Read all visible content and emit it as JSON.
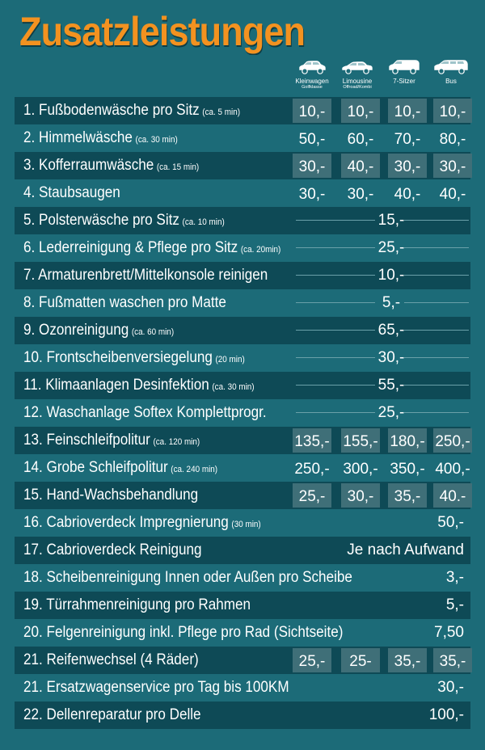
{
  "title": "Zusatzleistungen",
  "vehicles": [
    {
      "label": "Kleinwagen",
      "sub": "Golfklasse",
      "icon": "small-car-icon"
    },
    {
      "label": "Limousine",
      "sub": "Offroad/Kombi",
      "icon": "sedan-icon"
    },
    {
      "label": "7-Sitzer",
      "sub": "",
      "icon": "van-icon"
    },
    {
      "label": "Bus",
      "sub": "",
      "icon": "bus-icon"
    }
  ],
  "rows": [
    {
      "label": "1. Fußbodenwäsche pro Sitz",
      "note": "(ca. 5 min)",
      "type": "four",
      "boxed": true,
      "prices": [
        "10,-",
        "10,-",
        "10,-",
        "10,-"
      ]
    },
    {
      "label": "2. Himmelwäsche",
      "note": "(ca. 30 min)",
      "type": "four",
      "boxed": false,
      "prices": [
        "50,-",
        "60,-",
        "70,-",
        "80,-"
      ]
    },
    {
      "label": "3. Kofferraumwäsche",
      "note": "(ca. 15 min)",
      "type": "four",
      "boxed": true,
      "prices": [
        "30,-",
        "40,-",
        "30,-",
        "30,-"
      ]
    },
    {
      "label": "4. Staubsaugen",
      "note": "",
      "type": "four",
      "boxed": false,
      "prices": [
        "30,-",
        "30,-",
        "40,-",
        "40,-"
      ]
    },
    {
      "label": "5. Polsterwäsche pro Sitz",
      "note": "(ca. 10 min)",
      "type": "span",
      "price": "15,-"
    },
    {
      "label": "6. Lederreinigung & Pflege pro Sitz",
      "note": "(ca. 20min)",
      "type": "span",
      "price": "25,-"
    },
    {
      "label": "7. Armaturenbrett/Mittelkonsole reinigen",
      "note": "",
      "type": "span",
      "price": "10,-"
    },
    {
      "label": "8. Fußmatten waschen pro Matte",
      "note": "",
      "type": "span",
      "price": "5,-"
    },
    {
      "label": "9. Ozonreinigung",
      "note": "(ca. 60 min)",
      "type": "span",
      "price": "65,-"
    },
    {
      "label": "10. Frontscheibenversiegelung",
      "note": "(20 min)",
      "type": "span",
      "price": "30,-"
    },
    {
      "label": "11. Klimaanlagen Desinfektion",
      "note": "(ca. 30 min)",
      "type": "span",
      "price": "55,-"
    },
    {
      "label": "12. Waschanlage Softex Komplettprogr.",
      "note": "",
      "type": "span",
      "price": "25,-"
    },
    {
      "label": "13. Feinschleifpolitur",
      "note": "(ca. 120 min)",
      "type": "four",
      "boxed": true,
      "prices": [
        "135,-",
        "155,-",
        "180,-",
        "250,-"
      ]
    },
    {
      "label": "14. Grobe Schleifpolitur",
      "note": "(ca. 240 min)",
      "type": "four",
      "boxed": false,
      "prices": [
        "250,-",
        "300,-",
        "350,-",
        "400,-"
      ]
    },
    {
      "label": "15. Hand-Wachsbehandlung",
      "note": "",
      "type": "four",
      "boxed": true,
      "prices": [
        "25,-",
        "30,-",
        "35,-",
        "40.-"
      ]
    },
    {
      "label": "16. Cabrioverdeck Impregnierung",
      "note": "(30 min)",
      "type": "right",
      "price": "50,-"
    },
    {
      "label": "17. Cabrioverdeck Reinigung",
      "note": "",
      "type": "right",
      "price": "Je nach Aufwand"
    },
    {
      "label": "18. Scheibenreinigung Innen oder Außen pro Scheibe",
      "note": "",
      "type": "right",
      "price": "3,-"
    },
    {
      "label": "19. Türrahmenreinigung pro Rahmen",
      "note": "",
      "type": "right",
      "price": "5,-"
    },
    {
      "label": "20. Felgenreinigung inkl. Pflege pro Rad (Sichtseite)",
      "note": "",
      "type": "right",
      "price": "7,50"
    },
    {
      "label": "21. Reifenwechsel (4 Räder)",
      "note": "",
      "type": "four",
      "boxed": true,
      "prices": [
        "25,-",
        "25-",
        "35,-",
        "35,-"
      ]
    },
    {
      "label": "21. Ersatzwagenservice pro Tag bis 100KM",
      "note": "",
      "type": "right",
      "price": "30,-"
    },
    {
      "label": "22. Dellenreparatur pro Delle",
      "note": "",
      "type": "right",
      "price": "100,-"
    }
  ]
}
